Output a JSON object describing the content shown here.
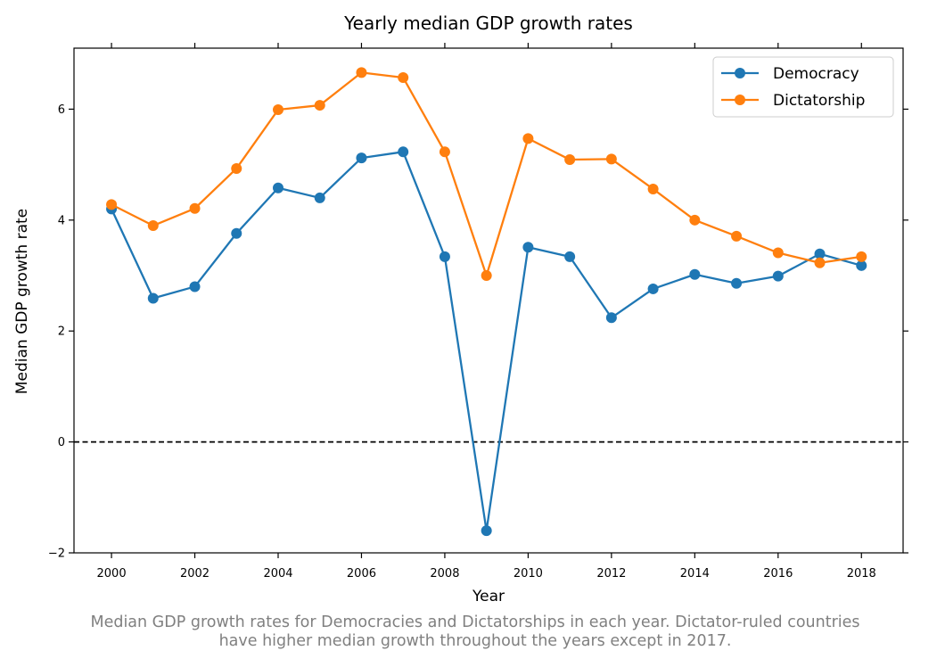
{
  "chart_data": {
    "type": "line",
    "title": "Yearly median GDP growth rates",
    "xlabel": "Year",
    "ylabel": "Median GDP growth rate",
    "xlim": [
      1999.1,
      2019.0
    ],
    "ylim": [
      -2,
      7.1
    ],
    "xticks": [
      2000,
      2002,
      2004,
      2006,
      2008,
      2010,
      2012,
      2014,
      2016,
      2018
    ],
    "yticks": [
      -2,
      0,
      2,
      4,
      6
    ],
    "reference_line": {
      "y": 0,
      "style": "dashed",
      "color": "#000000"
    },
    "grid": false,
    "legend_position": "top-right",
    "x": [
      2000,
      2001,
      2002,
      2003,
      2004,
      2005,
      2006,
      2007,
      2008,
      2009,
      2010,
      2011,
      2012,
      2013,
      2014,
      2015,
      2016,
      2017,
      2018
    ],
    "series": [
      {
        "name": "Democracy",
        "color": "#1f77b4",
        "marker": "circle",
        "values": [
          4.2,
          2.59,
          2.8,
          3.76,
          4.58,
          4.4,
          5.12,
          5.23,
          3.34,
          -1.6,
          3.51,
          3.34,
          2.24,
          2.76,
          3.02,
          2.86,
          2.99,
          3.39,
          3.18
        ]
      },
      {
        "name": "Dictatorship",
        "color": "#ff7f0e",
        "marker": "circle",
        "values": [
          4.28,
          3.9,
          4.21,
          4.93,
          5.99,
          6.07,
          6.66,
          6.57,
          5.23,
          3.0,
          5.47,
          5.09,
          5.1,
          4.56,
          4.0,
          3.71,
          3.41,
          3.23,
          3.34
        ]
      }
    ]
  },
  "caption": {
    "line1": "Median GDP growth rates for Democracies and Dictatorships in each year. Dictator-ruled countries",
    "line2": "have higher median growth throughout the years except in 2017."
  }
}
